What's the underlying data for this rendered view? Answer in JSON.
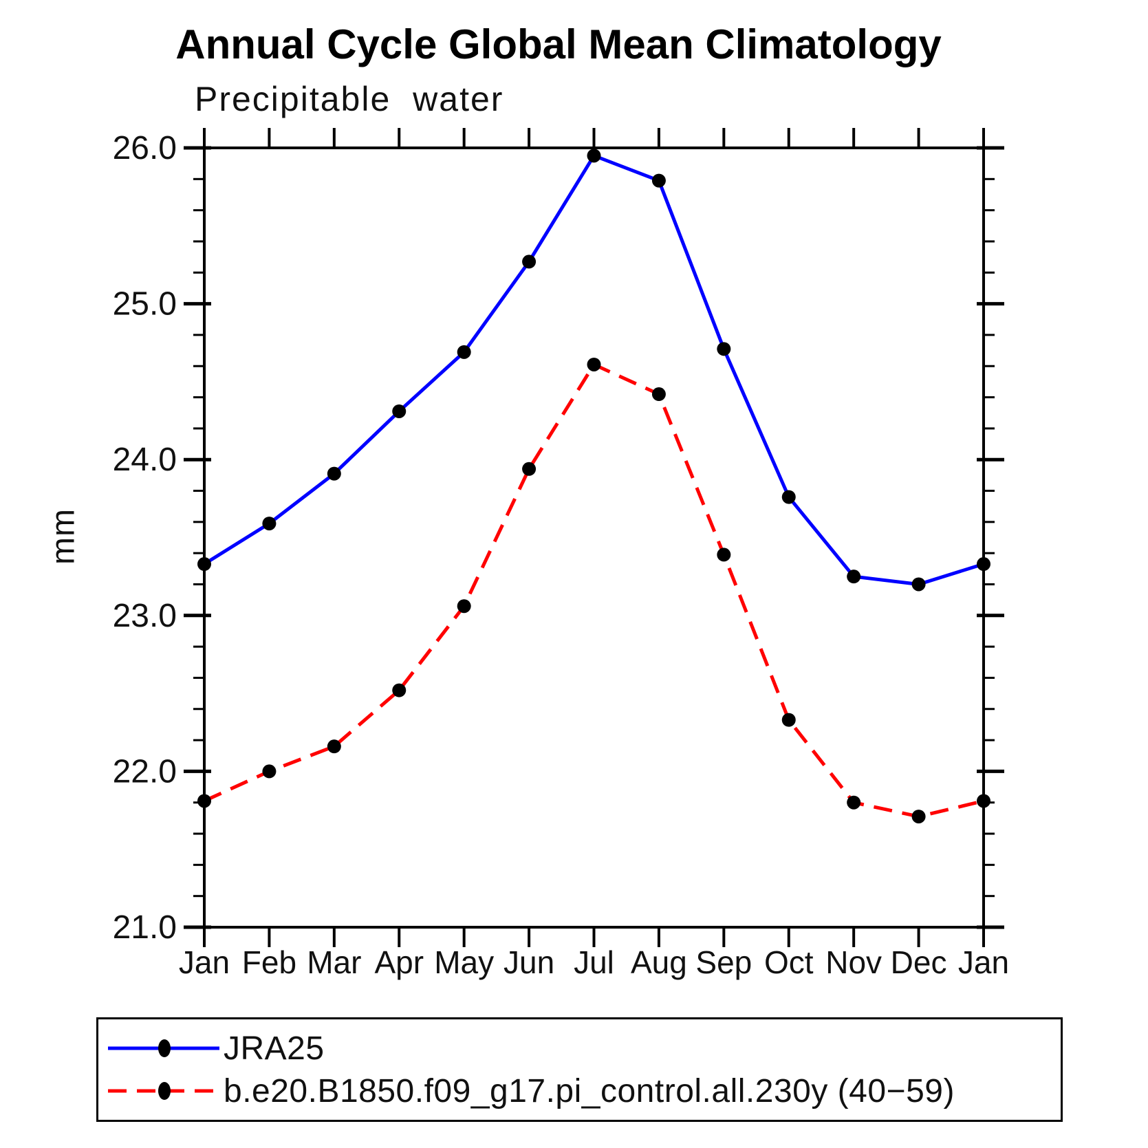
{
  "header": {
    "title": "Annual Cycle Global Mean Climatology"
  },
  "plot": {
    "subtitle": "Precipitable water",
    "y_axis_label": "mm"
  },
  "legend": {
    "entries": [
      {
        "label": "JRA25",
        "color": "#0000ff",
        "style": "solid",
        "marker": "filled-dot",
        "marker_color": "#000000"
      },
      {
        "label": "b.e20.B1850.f09_g17.pi_control.all.230y (40−59)",
        "color": "#ff0000",
        "style": "dashed",
        "marker": "filled-dot",
        "marker_color": "#000000"
      }
    ]
  },
  "chart_data": {
    "type": "line",
    "title": "Annual Cycle Global Mean Climatology",
    "subtitle": "Precipitable water",
    "xlabel": "",
    "ylabel": "mm",
    "categories": [
      "Jan",
      "Feb",
      "Mar",
      "Apr",
      "May",
      "Jun",
      "Jul",
      "Aug",
      "Sep",
      "Oct",
      "Nov",
      "Dec",
      "Jan"
    ],
    "series": [
      {
        "name": "JRA25",
        "color": "#0000ff",
        "line_style": "solid",
        "marker": "filled-circle",
        "marker_color": "#000000",
        "values": [
          23.33,
          23.59,
          23.91,
          24.31,
          24.69,
          25.27,
          25.95,
          25.79,
          24.71,
          23.76,
          23.25,
          23.2,
          23.33
        ]
      },
      {
        "name": "b.e20.B1850.f09_g17.pi_control.all.230y (40−59)",
        "color": "#ff0000",
        "line_style": "dashed",
        "marker": "filled-circle",
        "marker_color": "#000000",
        "values": [
          21.81,
          22.0,
          22.16,
          22.52,
          23.06,
          23.94,
          24.61,
          24.42,
          23.39,
          22.33,
          21.8,
          21.71,
          21.81
        ]
      }
    ],
    "ylim": [
      21.0,
      26.0
    ],
    "ytick_labels": [
      "21.0",
      "22.0",
      "23.0",
      "24.0",
      "25.0",
      "26.0"
    ],
    "ytick_major_interval": 1.0,
    "ytick_minor_interval": 0.2,
    "grid": false,
    "frame": true,
    "ticks_direction": "out",
    "legend_position": "bottom-left-box"
  }
}
